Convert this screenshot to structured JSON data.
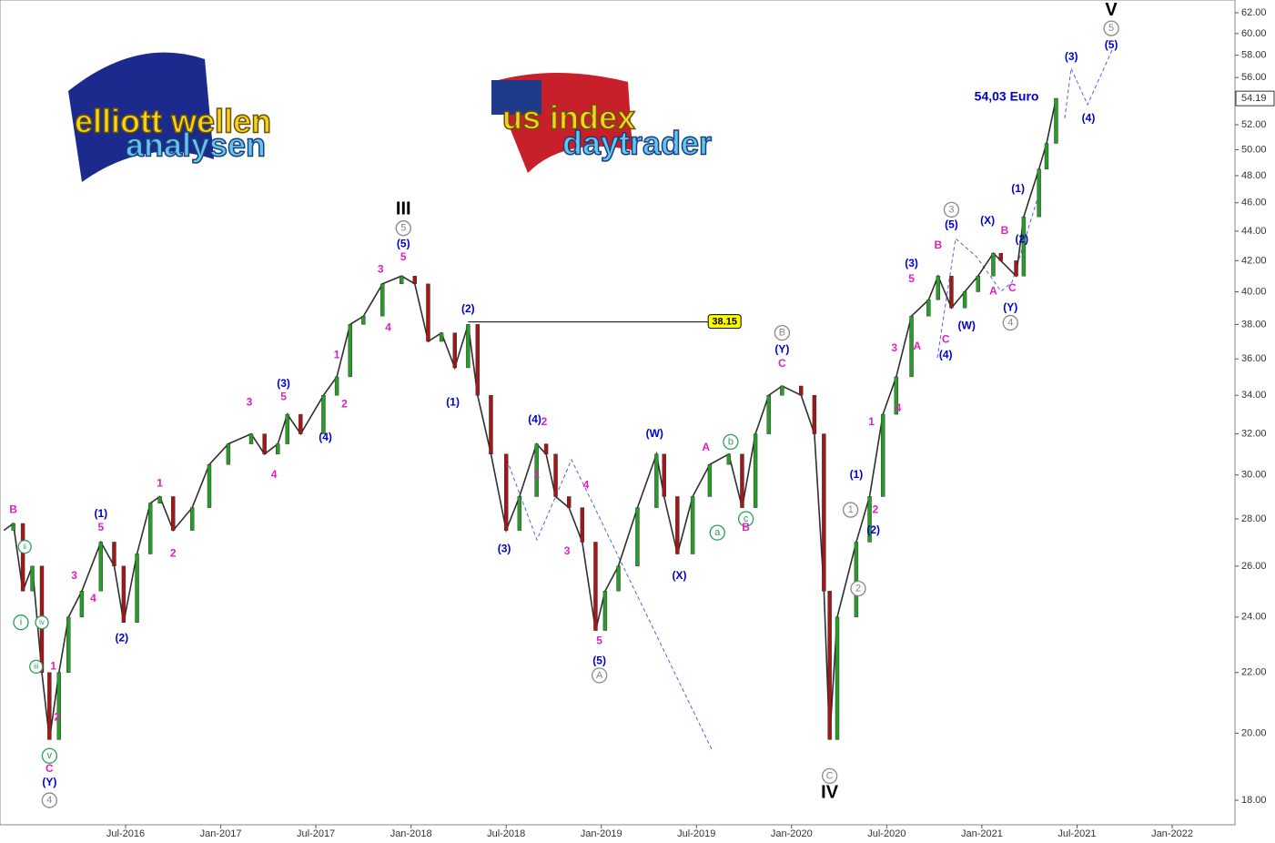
{
  "chart_data": {
    "type": "line",
    "log_scale": true,
    "color": "#2f2f2f",
    "logos": [
      {
        "lines": [
          "elliott wellen",
          "analysen"
        ]
      },
      {
        "lines": [
          "us index",
          "daytrader"
        ]
      }
    ],
    "xlim": [
      2015.84,
      2022.33
    ],
    "xticks": [
      {
        "value": 2016.5,
        "label": "Jul-2016"
      },
      {
        "value": 2017.0,
        "label": "Jan-2017"
      },
      {
        "value": 2017.5,
        "label": "Jul-2017"
      },
      {
        "value": 2018.0,
        "label": "Jan-2018"
      },
      {
        "value": 2018.5,
        "label": "Jul-2018"
      },
      {
        "value": 2019.0,
        "label": "Jan-2019"
      },
      {
        "value": 2019.5,
        "label": "Jul-2019"
      },
      {
        "value": 2020.0,
        "label": "Jan-2020"
      },
      {
        "value": 2020.5,
        "label": "Jul-2020"
      },
      {
        "value": 2021.0,
        "label": "Jan-2021"
      },
      {
        "value": 2021.5,
        "label": "Jul-2021"
      },
      {
        "value": 2022.0,
        "label": "Jan-2022"
      }
    ],
    "ylim": [
      17.32,
      63.25
    ],
    "yticks": [
      {
        "value": 18,
        "label": "18.00"
      },
      {
        "value": 20,
        "label": "20.00"
      },
      {
        "value": 22,
        "label": "22.00"
      },
      {
        "value": 24,
        "label": "24.00"
      },
      {
        "value": 26,
        "label": "26.00"
      },
      {
        "value": 28,
        "label": "28.00"
      },
      {
        "value": 30,
        "label": "30.00"
      },
      {
        "value": 32,
        "label": "32.00"
      },
      {
        "value": 34,
        "label": "34.00"
      },
      {
        "value": 36,
        "label": "36.00"
      },
      {
        "value": 38,
        "label": "38.00"
      },
      {
        "value": 40,
        "label": "40.00"
      },
      {
        "value": 42,
        "label": "42.00"
      },
      {
        "value": 44,
        "label": "44.00"
      },
      {
        "value": 46,
        "label": "46.00"
      },
      {
        "value": 48,
        "label": "48.00"
      },
      {
        "value": 50,
        "label": "50.00"
      },
      {
        "value": 52,
        "label": "52.00"
      },
      {
        "value": 54,
        "label": "54.00"
      },
      {
        "value": 56,
        "label": "56.00"
      },
      {
        "value": 58,
        "label": "58.00"
      },
      {
        "value": 60,
        "label": "60.00"
      },
      {
        "value": 62,
        "label": "62.00"
      }
    ],
    "x": [
      2015.86,
      2015.91,
      2015.96,
      2016.01,
      2016.06,
      2016.1,
      2016.15,
      2016.2,
      2016.27,
      2016.37,
      2016.44,
      2016.49,
      2016.56,
      2016.63,
      2016.68,
      2016.75,
      2016.85,
      2016.94,
      2017.04,
      2017.16,
      2017.23,
      2017.3,
      2017.35,
      2017.42,
      2017.54,
      2017.61,
      2017.68,
      2017.75,
      2017.85,
      2017.95,
      2018.02,
      2018.09,
      2018.16,
      2018.23,
      2018.3,
      2018.35,
      2018.42,
      2018.5,
      2018.57,
      2018.66,
      2018.71,
      2018.76,
      2018.83,
      2018.9,
      2018.97,
      2019.02,
      2019.09,
      2019.19,
      2019.29,
      2019.33,
      2019.4,
      2019.48,
      2019.57,
      2019.67,
      2019.74,
      2019.81,
      2019.88,
      2019.95,
      2020.05,
      2020.12,
      2020.17,
      2020.2,
      2020.24,
      2020.34,
      2020.41,
      2020.48,
      2020.55,
      2020.63,
      2020.72,
      2020.77,
      2020.84,
      2020.91,
      2020.98,
      2021.06,
      2021.1,
      2021.18,
      2021.22,
      2021.3,
      2021.34,
      2021.39
    ],
    "values": [
      27.5,
      27.8,
      25,
      26,
      22,
      19.8,
      22,
      24,
      25,
      27,
      26,
      23.8,
      26.5,
      28.7,
      29,
      27.5,
      28.5,
      30.5,
      31.5,
      32,
      31,
      31.5,
      33,
      32,
      34,
      35,
      38,
      38.5,
      40.5,
      41,
      40.5,
      37,
      37.5,
      35.5,
      38,
      34,
      31,
      27.5,
      29,
      31.5,
      31,
      29,
      28.5,
      27,
      23.5,
      25,
      26,
      28.5,
      31,
      29,
      26.5,
      29,
      30.5,
      31,
      28.5,
      32,
      34,
      34.5,
      34,
      32,
      25,
      19.8,
      24,
      27,
      29,
      33,
      35,
      38.5,
      39.5,
      41,
      39,
      40,
      41,
      42.5,
      42,
      41,
      45,
      48.5,
      50.5,
      54.2
    ],
    "reference": {
      "value": 38.15,
      "x": [
        2018.3,
        2019.6
      ]
    },
    "last_value": 54.19,
    "annotations": [
      {
        "text": "III",
        "x": 2017.96,
        "y": 45.5,
        "color": "#000000"
      },
      {
        "text": "5",
        "x": 2017.96,
        "y": 44.2,
        "color": "#888888",
        "circle": true
      },
      {
        "text": "(5)",
        "x": 2017.96,
        "y": 43.1,
        "color": "#0000cc"
      },
      {
        "text": "5",
        "x": 2017.96,
        "y": 42.2,
        "color": "#e020c0"
      },
      {
        "text": "3",
        "x": 2017.84,
        "y": 41.4,
        "color": "#e020c0"
      },
      {
        "text": "4",
        "x": 2017.88,
        "y": 37.8,
        "color": "#e020c0"
      },
      {
        "text": "(2)",
        "x": 2018.3,
        "y": 38.9,
        "color": "#0000cc"
      },
      {
        "text": "(1)",
        "x": 2018.22,
        "y": 33.6,
        "color": "#0000cc"
      },
      {
        "text": "(3)",
        "x": 2018.49,
        "y": 26.7,
        "color": "#0000cc"
      },
      {
        "text": "(4)",
        "x": 2018.65,
        "y": 32.7,
        "color": "#0000cc"
      },
      {
        "text": "2",
        "x": 2018.7,
        "y": 32.6,
        "color": "#e020c0"
      },
      {
        "text": "1",
        "x": 2018.66,
        "y": 30.0,
        "color": "#e020c0"
      },
      {
        "text": "4",
        "x": 2018.92,
        "y": 29.5,
        "color": "#e020c0"
      },
      {
        "text": "3",
        "x": 2018.82,
        "y": 26.6,
        "color": "#e020c0"
      },
      {
        "text": "5",
        "x": 2018.99,
        "y": 23.1,
        "color": "#e020c0"
      },
      {
        "text": "(5)",
        "x": 2018.99,
        "y": 22.4,
        "color": "#0000cc"
      },
      {
        "text": "A",
        "x": 2018.99,
        "y": 21.9,
        "color": "#888888",
        "circle": true
      },
      {
        "text": "(W)",
        "x": 2019.28,
        "y": 32.0,
        "color": "#0000cc"
      },
      {
        "text": "(X)",
        "x": 2019.41,
        "y": 25.6,
        "color": "#0000cc"
      },
      {
        "text": "A",
        "x": 2019.55,
        "y": 31.3,
        "color": "#e020c0"
      },
      {
        "text": "b",
        "x": 2019.68,
        "y": 31.6,
        "color": "#2a9d5c",
        "circle": true
      },
      {
        "text": "a",
        "x": 2019.61,
        "y": 27.4,
        "color": "#2a9d5c",
        "circle": true
      },
      {
        "text": "c",
        "x": 2019.76,
        "y": 28.0,
        "color": "#2a9d5c",
        "circle": true
      },
      {
        "text": "B",
        "x": 2019.76,
        "y": 27.6,
        "color": "#e020c0"
      },
      {
        "text": "B",
        "x": 2019.95,
        "y": 37.5,
        "color": "#888888",
        "circle": true
      },
      {
        "text": "(Y)",
        "x": 2019.95,
        "y": 36.5,
        "color": "#0000cc"
      },
      {
        "text": "C",
        "x": 2019.95,
        "y": 35.7,
        "color": "#e020c0"
      },
      {
        "text": "C",
        "x": 2020.2,
        "y": 18.7,
        "color": "#888888",
        "circle": true
      },
      {
        "text": "IV",
        "x": 2020.2,
        "y": 18.2,
        "color": "#000000"
      },
      {
        "text": "1",
        "x": 2020.31,
        "y": 28.4,
        "color": "#888888",
        "circle": true
      },
      {
        "text": "2",
        "x": 2020.35,
        "y": 25.1,
        "color": "#888888",
        "circle": true
      },
      {
        "text": "(1)",
        "x": 2020.34,
        "y": 30.0,
        "color": "#0000cc"
      },
      {
        "text": "1",
        "x": 2020.42,
        "y": 32.6,
        "color": "#e020c0"
      },
      {
        "text": "2",
        "x": 2020.44,
        "y": 28.4,
        "color": "#e020c0"
      },
      {
        "text": "(2)",
        "x": 2020.43,
        "y": 27.5,
        "color": "#0000cc"
      },
      {
        "text": "3",
        "x": 2020.54,
        "y": 36.6,
        "color": "#e020c0"
      },
      {
        "text": "4",
        "x": 2020.56,
        "y": 33.3,
        "color": "#e020c0"
      },
      {
        "text": "(3)",
        "x": 2020.63,
        "y": 41.8,
        "color": "#0000cc"
      },
      {
        "text": "5",
        "x": 2020.63,
        "y": 40.8,
        "color": "#e020c0"
      },
      {
        "text": "A",
        "x": 2020.66,
        "y": 36.7,
        "color": "#e020c0"
      },
      {
        "text": "B",
        "x": 2020.77,
        "y": 43.0,
        "color": "#e020c0"
      },
      {
        "text": "C",
        "x": 2020.81,
        "y": 37.1,
        "color": "#e020c0"
      },
      {
        "text": "(4)",
        "x": 2020.81,
        "y": 36.2,
        "color": "#0000cc"
      },
      {
        "text": "3",
        "x": 2020.84,
        "y": 45.5,
        "color": "#888888",
        "circle": true
      },
      {
        "text": "(5)",
        "x": 2020.84,
        "y": 44.4,
        "color": "#0000cc"
      },
      {
        "text": "(W)",
        "x": 2020.92,
        "y": 37.9,
        "color": "#0000cc"
      },
      {
        "text": "(X)",
        "x": 2021.03,
        "y": 44.7,
        "color": "#0000cc"
      },
      {
        "text": "B",
        "x": 2021.12,
        "y": 44.0,
        "color": "#e020c0"
      },
      {
        "text": "A",
        "x": 2021.06,
        "y": 40.0,
        "color": "#e020c0"
      },
      {
        "text": "C",
        "x": 2021.16,
        "y": 40.2,
        "color": "#e020c0"
      },
      {
        "text": "(Y)",
        "x": 2021.15,
        "y": 39.0,
        "color": "#0000cc"
      },
      {
        "text": "4",
        "x": 2021.15,
        "y": 38.1,
        "color": "#888888",
        "circle": true
      },
      {
        "text": "(2)",
        "x": 2021.21,
        "y": 43.4,
        "color": "#0000cc"
      },
      {
        "text": "(1)",
        "x": 2021.19,
        "y": 47.0,
        "color": "#0000cc"
      },
      {
        "text": "(3)",
        "x": 2021.47,
        "y": 57.8,
        "color": "#0000cc"
      },
      {
        "text": "(4)",
        "x": 2021.56,
        "y": 52.5,
        "color": "#0000cc"
      },
      {
        "text": "V",
        "x": 2021.68,
        "y": 62.2,
        "color": "#000000"
      },
      {
        "text": "5",
        "x": 2021.68,
        "y": 60.5,
        "color": "#888888",
        "circle": true
      },
      {
        "text": "(5)",
        "x": 2021.68,
        "y": 58.9,
        "color": "#0000cc"
      },
      {
        "text": "54,03 Euro",
        "x": 2021.13,
        "y": 54.3,
        "color": "#0000cc"
      },
      {
        "text": "B",
        "x": 2015.91,
        "y": 28.4,
        "color": "#e020c0"
      },
      {
        "text": "ii",
        "x": 2015.97,
        "y": 26.8,
        "color": "#2a9d5c",
        "circle": true
      },
      {
        "text": "i",
        "x": 2015.95,
        "y": 23.8,
        "color": "#2a9d5c",
        "circle": true
      },
      {
        "text": "iv",
        "x": 2016.06,
        "y": 23.8,
        "color": "#2a9d5c",
        "circle": true
      },
      {
        "text": "iii",
        "x": 2016.03,
        "y": 22.2,
        "color": "#2a9d5c",
        "circle": true
      },
      {
        "text": "1",
        "x": 2016.12,
        "y": 22.2,
        "color": "#e020c0"
      },
      {
        "text": "2",
        "x": 2016.14,
        "y": 20.5,
        "color": "#e020c0"
      },
      {
        "text": "v",
        "x": 2016.1,
        "y": 19.3,
        "color": "#2a9d5c",
        "circle": true
      },
      {
        "text": "C",
        "x": 2016.1,
        "y": 18.9,
        "color": "#e020c0"
      },
      {
        "text": "(Y)",
        "x": 2016.1,
        "y": 18.5,
        "color": "#0000cc"
      },
      {
        "text": "4",
        "x": 2016.1,
        "y": 18.0,
        "color": "#888888",
        "circle": true
      },
      {
        "text": "(1)",
        "x": 2016.37,
        "y": 28.2,
        "color": "#0000cc"
      },
      {
        "text": "5",
        "x": 2016.37,
        "y": 27.6,
        "color": "#e020c0"
      },
      {
        "text": "3",
        "x": 2016.23,
        "y": 25.6,
        "color": "#e020c0"
      },
      {
        "text": "4",
        "x": 2016.33,
        "y": 24.7,
        "color": "#e020c0"
      },
      {
        "text": "(2)",
        "x": 2016.48,
        "y": 23.2,
        "color": "#0000cc"
      },
      {
        "text": "1",
        "x": 2016.68,
        "y": 29.6,
        "color": "#e020c0"
      },
      {
        "text": "2",
        "x": 2016.75,
        "y": 26.5,
        "color": "#e020c0"
      },
      {
        "text": "3",
        "x": 2017.15,
        "y": 33.6,
        "color": "#e020c0"
      },
      {
        "text": "4",
        "x": 2017.28,
        "y": 30.0,
        "color": "#e020c0"
      },
      {
        "text": "(3)",
        "x": 2017.33,
        "y": 34.6,
        "color": "#0000cc"
      },
      {
        "text": "5",
        "x": 2017.33,
        "y": 33.9,
        "color": "#e020c0"
      },
      {
        "text": "(4)",
        "x": 2017.55,
        "y": 31.8,
        "color": "#0000cc"
      },
      {
        "text": "1",
        "x": 2017.61,
        "y": 36.2,
        "color": "#e020c0"
      },
      {
        "text": "2",
        "x": 2017.65,
        "y": 33.5,
        "color": "#e020c0"
      }
    ]
  }
}
